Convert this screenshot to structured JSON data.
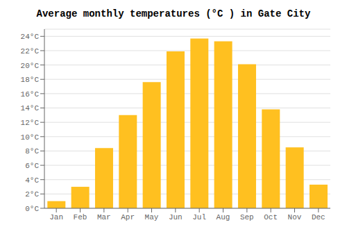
{
  "chart_data": {
    "type": "bar",
    "title": "Average monthly temperatures (°C ) in Gate City",
    "categories": [
      "Jan",
      "Feb",
      "Mar",
      "Apr",
      "May",
      "Jun",
      "Jul",
      "Aug",
      "Sep",
      "Oct",
      "Nov",
      "Dec"
    ],
    "values": [
      1.0,
      3.0,
      8.4,
      13.0,
      17.6,
      21.9,
      23.7,
      23.3,
      20.1,
      13.8,
      8.5,
      3.3
    ],
    "color": "#FFC020",
    "ylim": [
      0,
      25
    ],
    "yticks": [
      {
        "value": 0,
        "label": "0°C"
      },
      {
        "value": 2,
        "label": "2°C"
      },
      {
        "value": 4,
        "label": "4°C"
      },
      {
        "value": 6,
        "label": "6°C"
      },
      {
        "value": 8,
        "label": "8°C"
      },
      {
        "value": 10,
        "label": "10°C"
      },
      {
        "value": 12,
        "label": "12°C"
      },
      {
        "value": 14,
        "label": "14°C"
      },
      {
        "value": 16,
        "label": "16°C"
      },
      {
        "value": 18,
        "label": "18°C"
      },
      {
        "value": 20,
        "label": "20°C"
      },
      {
        "value": 22,
        "label": "22°C"
      },
      {
        "value": 24,
        "label": "24°C"
      }
    ],
    "grid": true
  }
}
